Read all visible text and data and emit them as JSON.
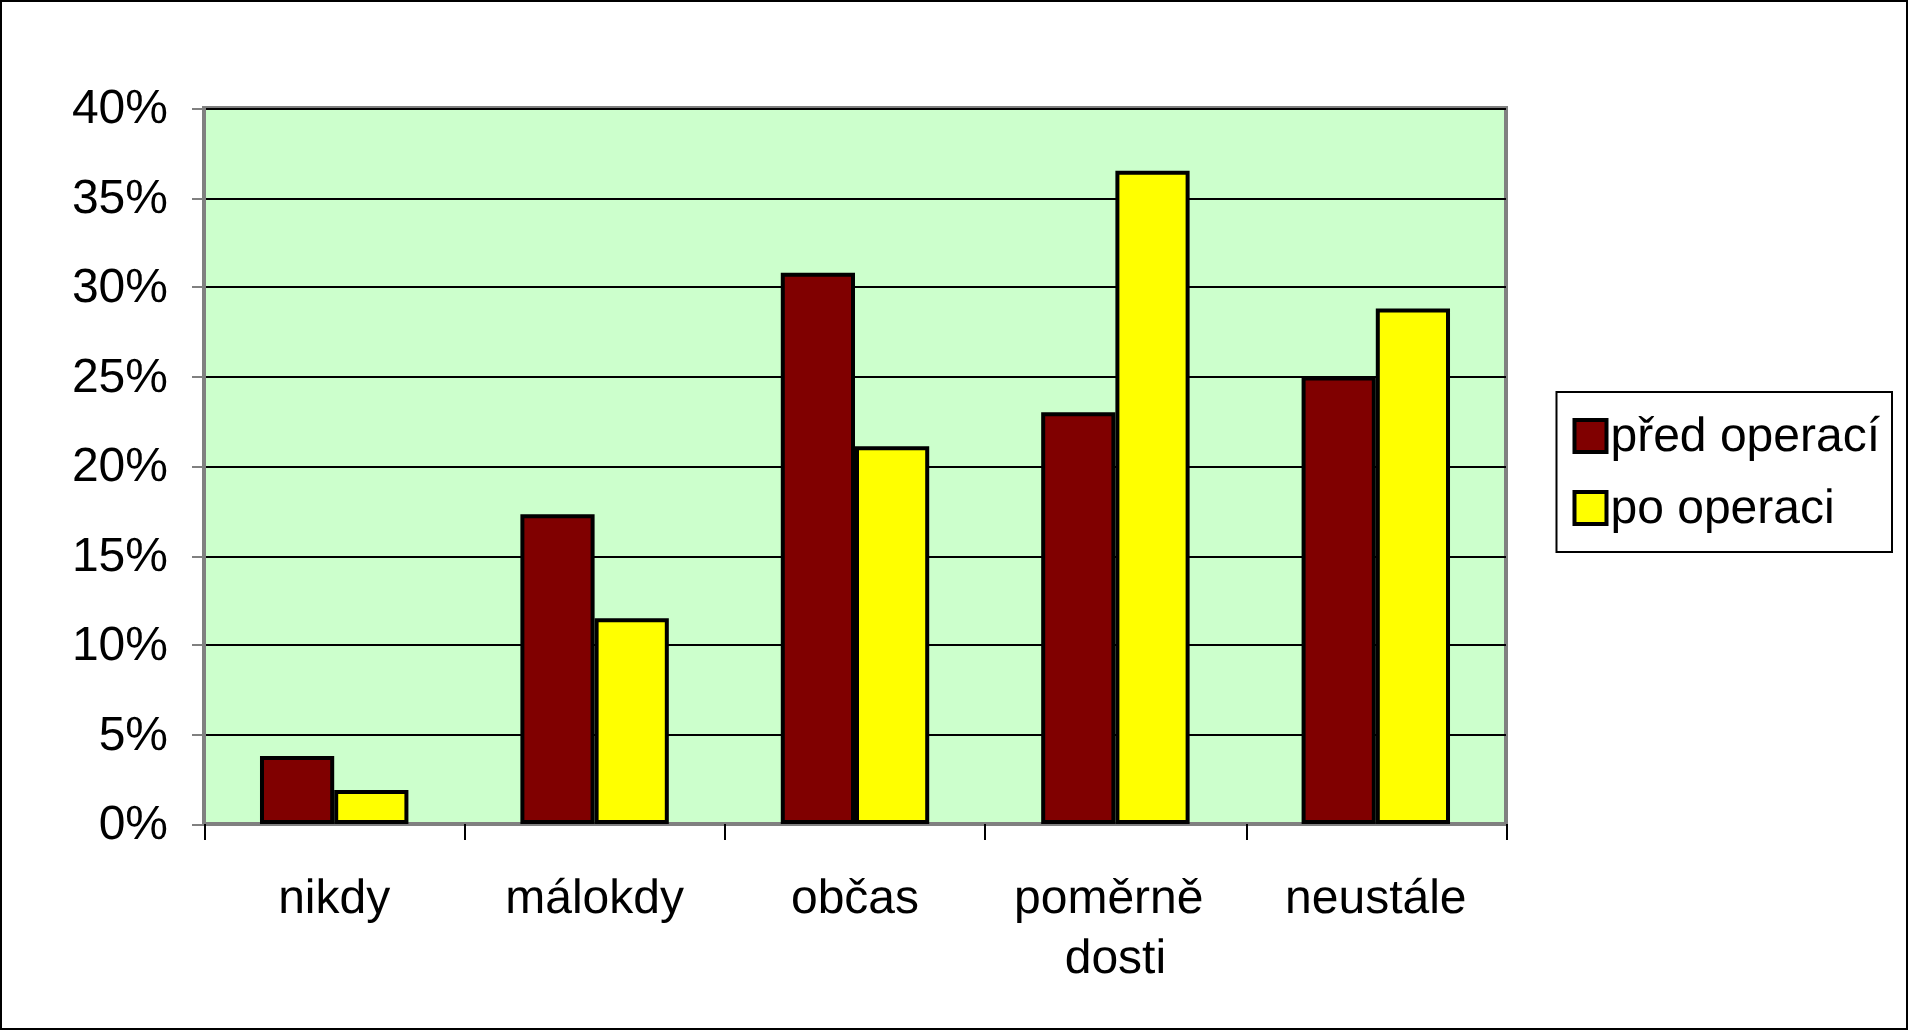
{
  "chart_data": {
    "type": "bar",
    "categories": [
      "nikdy",
      "málokdy",
      "občas",
      "poměrně dosti",
      "neustále"
    ],
    "series": [
      {
        "name": "před operací",
        "color": "#800000",
        "values": [
          3.8,
          17.3,
          30.8,
          23.0,
          25.0
        ]
      },
      {
        "name": "po operaci",
        "color": "#ffff00",
        "values": [
          1.9,
          11.5,
          21.1,
          36.5,
          28.8
        ]
      }
    ],
    "ylim": [
      0,
      40
    ],
    "yticks": [
      {
        "value": 0,
        "label": "0%"
      },
      {
        "value": 5,
        "label": "5%"
      },
      {
        "value": 10,
        "label": "10%"
      },
      {
        "value": 15,
        "label": "15%"
      },
      {
        "value": 20,
        "label": "20%"
      },
      {
        "value": 25,
        "label": "25%"
      },
      {
        "value": 30,
        "label": "30%"
      },
      {
        "value": 35,
        "label": "35%"
      },
      {
        "value": 40,
        "label": "40%"
      }
    ],
    "grid": "y",
    "legend": "right"
  }
}
